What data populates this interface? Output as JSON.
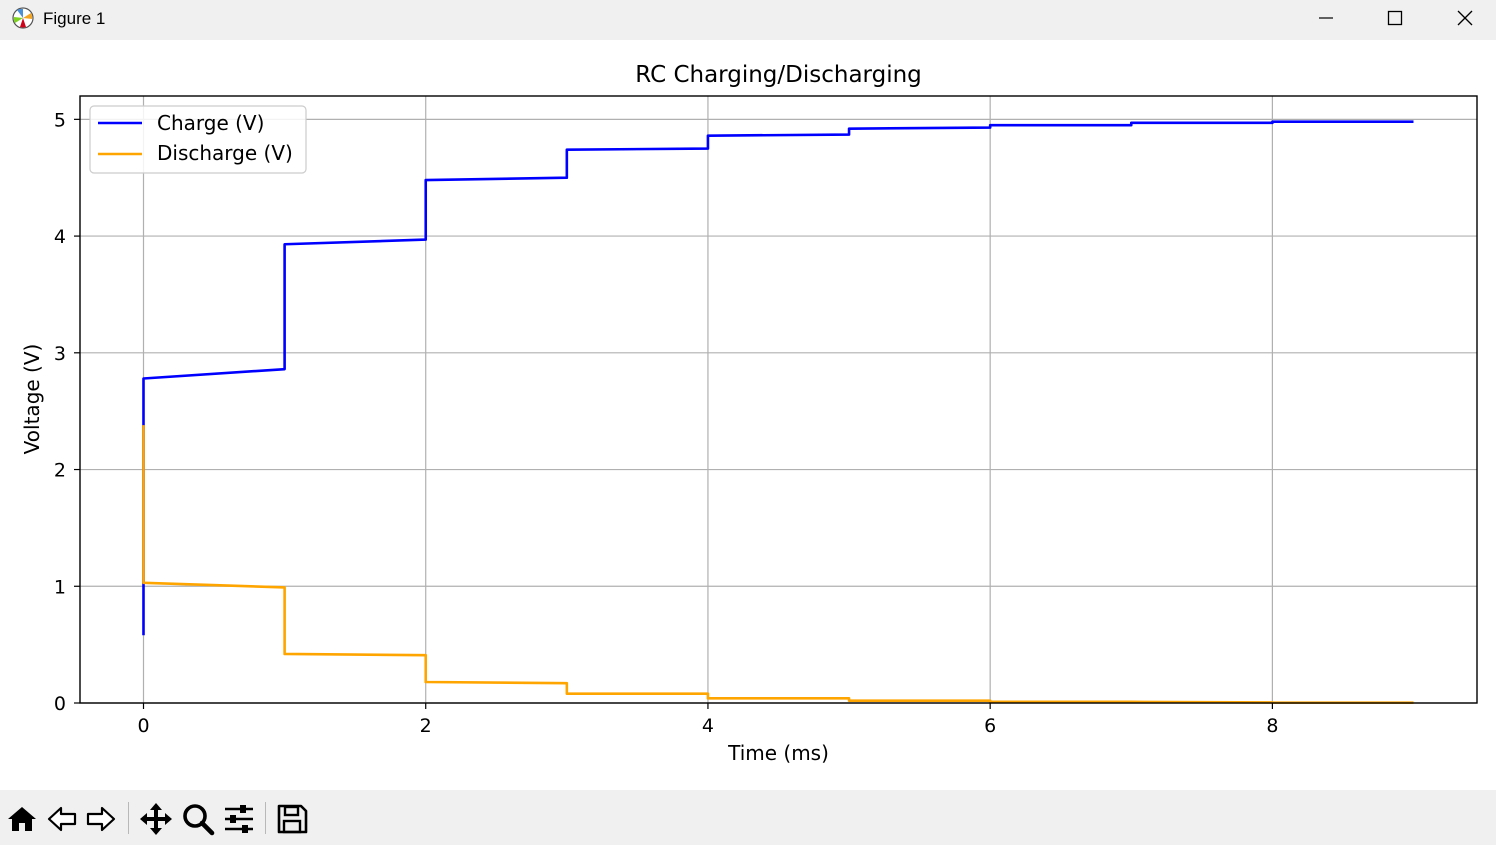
{
  "window": {
    "title": "Figure 1"
  },
  "toolbar": {
    "buttons": [
      "home-icon",
      "back-icon",
      "forward-icon",
      "pan-icon",
      "zoom-icon",
      "configure-subplots-icon",
      "save-icon"
    ]
  },
  "colors": {
    "charge": "#0000ff",
    "discharge": "#ffa500",
    "grid": "#b0b0b0"
  },
  "chart_data": {
    "type": "line",
    "title": "RC Charging/Discharging",
    "xlabel": "Time (ms)",
    "ylabel": "Voltage (V)",
    "xlim": [
      -0.45,
      9.45
    ],
    "ylim": [
      0,
      5.2
    ],
    "xticks": [
      0,
      2,
      4,
      6,
      8
    ],
    "yticks": [
      0,
      1,
      2,
      3,
      4,
      5
    ],
    "grid": true,
    "legend_position": "upper-left",
    "series": [
      {
        "name": "Charge (V)",
        "color": "#0000ff",
        "points": [
          [
            0,
            0.58
          ],
          [
            0,
            2.78
          ],
          [
            1,
            2.86
          ],
          [
            1,
            3.93
          ],
          [
            2,
            3.97
          ],
          [
            2,
            4.48
          ],
          [
            3,
            4.5
          ],
          [
            3,
            4.74
          ],
          [
            4,
            4.75
          ],
          [
            4,
            4.86
          ],
          [
            5,
            4.87
          ],
          [
            5,
            4.92
          ],
          [
            6,
            4.93
          ],
          [
            6,
            4.95
          ],
          [
            7,
            4.95
          ],
          [
            7,
            4.97
          ],
          [
            8,
            4.97
          ],
          [
            8,
            4.98
          ],
          [
            9,
            4.98
          ]
        ]
      },
      {
        "name": "Discharge (V)",
        "color": "#ffa500",
        "points": [
          [
            0,
            2.38
          ],
          [
            0,
            1.03
          ],
          [
            1,
            0.99
          ],
          [
            1,
            0.42
          ],
          [
            2,
            0.41
          ],
          [
            2,
            0.18
          ],
          [
            3,
            0.17
          ],
          [
            3,
            0.08
          ],
          [
            4,
            0.08
          ],
          [
            4,
            0.04
          ],
          [
            5,
            0.04
          ],
          [
            5,
            0.02
          ],
          [
            6,
            0.02
          ],
          [
            6,
            0.01
          ],
          [
            7,
            0.01
          ],
          [
            7,
            0.01
          ],
          [
            8,
            0.005
          ],
          [
            8,
            0.004
          ],
          [
            9,
            0.003
          ]
        ]
      }
    ]
  }
}
